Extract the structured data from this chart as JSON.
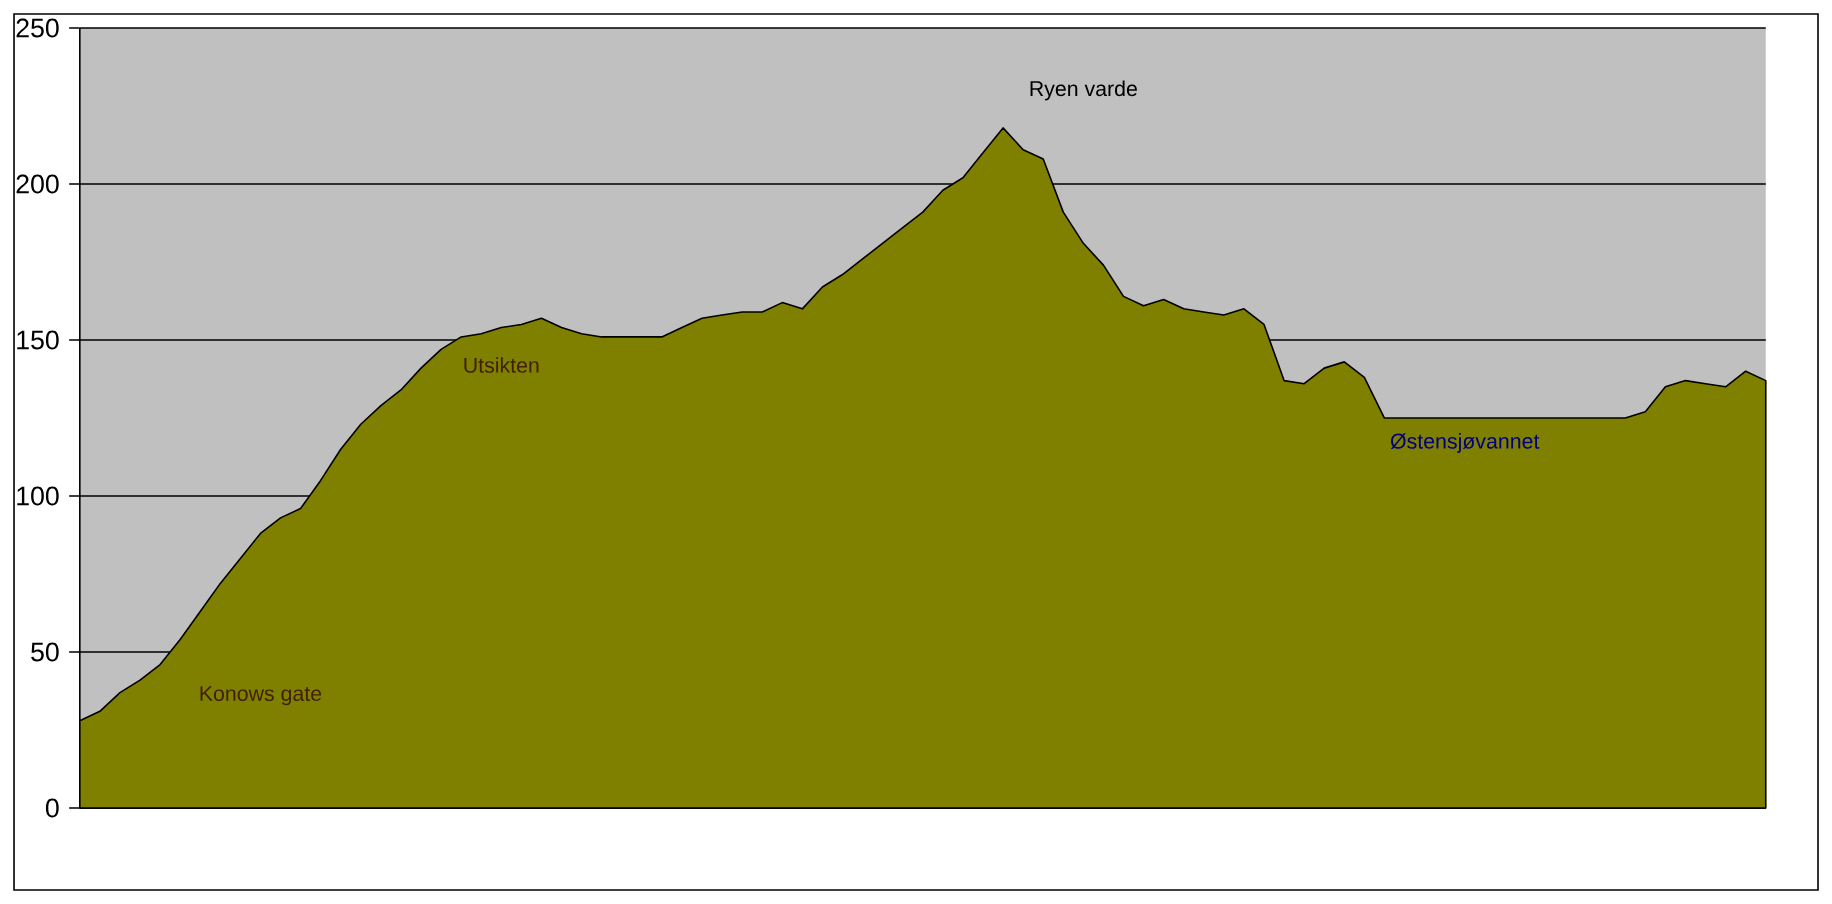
{
  "chart_data": {
    "type": "area",
    "categories": [
      null,
      null,
      null,
      null,
      null,
      null,
      null,
      null,
      null,
      null,
      null,
      null,
      null,
      null,
      null,
      null,
      null,
      null,
      null,
      null,
      null,
      null,
      null,
      null,
      null,
      null,
      null,
      null,
      null,
      null,
      null,
      null,
      null,
      null,
      null,
      null,
      null,
      null,
      null,
      null,
      null,
      null,
      null,
      null,
      null,
      null,
      null,
      null,
      null,
      null,
      null,
      null,
      null,
      null,
      null,
      null,
      null,
      null,
      null,
      null,
      null,
      null,
      null,
      null,
      null,
      null,
      null,
      null,
      null,
      null,
      null,
      null,
      null,
      null,
      null,
      null,
      null,
      null,
      null,
      null,
      null,
      null,
      null,
      null,
      null
    ],
    "values": [
      28,
      31,
      37,
      41,
      46,
      54,
      63,
      72,
      80,
      88,
      93,
      96,
      105,
      115,
      123,
      129,
      134,
      141,
      147,
      151,
      152,
      154,
      155,
      157,
      154,
      152,
      151,
      151,
      151,
      151,
      154,
      157,
      158,
      159,
      159,
      162,
      160,
      167,
      171,
      176,
      181,
      186,
      191,
      198,
      202,
      210,
      218,
      211,
      208,
      191,
      181,
      174,
      164,
      161,
      163,
      160,
      159,
      158,
      160,
      155,
      137,
      136,
      141,
      143,
      138,
      125,
      125,
      125,
      125,
      125,
      125,
      125,
      125,
      125,
      125,
      125,
      125,
      125,
      127,
      135,
      137,
      136,
      135,
      140,
      137
    ],
    "color": "#808000",
    "ylim": [
      0,
      250
    ],
    "yticks": [
      0,
      50,
      100,
      150,
      200,
      250
    ],
    "grid": "y",
    "tick_labels": "y",
    "annotations": [
      "Konows gate",
      "Utsikten",
      "Ryen varde",
      "Østensjøvannet"
    ]
  }
}
